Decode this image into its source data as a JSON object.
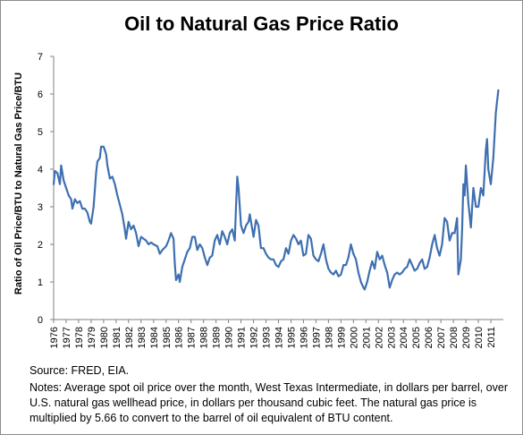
{
  "chart_data": {
    "type": "line",
    "title": "Oil to Natural Gas Price Ratio",
    "xlabel": "",
    "ylabel": "Ratio of Oil Price/BTU to Natural Gas Price/BTU",
    "ylim": [
      0,
      7
    ],
    "yticks": [
      "0",
      "1",
      "2",
      "3",
      "4",
      "5",
      "6",
      "7"
    ],
    "xlim": [
      1976,
      2012
    ],
    "xticks": [
      "1976",
      "1977",
      "1978",
      "1979",
      "1980",
      "1981",
      "1982",
      "1983",
      "1984",
      "1985",
      "1986",
      "1987",
      "1988",
      "1989",
      "1990",
      "1991",
      "1992",
      "1993",
      "1994",
      "1995",
      "1996",
      "1997",
      "1998",
      "1999",
      "2000",
      "2001",
      "2002",
      "2003",
      "2004",
      "2005",
      "2006",
      "2007",
      "2008",
      "2009",
      "2010",
      "2011"
    ],
    "grid": false,
    "legend": "none",
    "series_color": "#3e6fb0",
    "series": [
      {
        "values": [
          [
            1976.0,
            3.6
          ],
          [
            1976.1,
            3.95
          ],
          [
            1976.3,
            3.9
          ],
          [
            1976.5,
            3.6
          ],
          [
            1976.6,
            4.1
          ],
          [
            1976.8,
            3.7
          ],
          [
            1977.0,
            3.5
          ],
          [
            1977.2,
            3.3
          ],
          [
            1977.4,
            3.2
          ],
          [
            1977.5,
            2.95
          ],
          [
            1977.7,
            3.2
          ],
          [
            1977.9,
            3.1
          ],
          [
            1978.1,
            3.15
          ],
          [
            1978.3,
            2.95
          ],
          [
            1978.5,
            2.95
          ],
          [
            1978.7,
            2.85
          ],
          [
            1978.9,
            2.6
          ],
          [
            1979.0,
            2.55
          ],
          [
            1979.2,
            3.0
          ],
          [
            1979.4,
            3.9
          ],
          [
            1979.5,
            4.2
          ],
          [
            1979.7,
            4.3
          ],
          [
            1979.8,
            4.6
          ],
          [
            1980.0,
            4.6
          ],
          [
            1980.2,
            4.4
          ],
          [
            1980.3,
            4.1
          ],
          [
            1980.5,
            3.75
          ],
          [
            1980.7,
            3.8
          ],
          [
            1980.9,
            3.6
          ],
          [
            1981.1,
            3.3
          ],
          [
            1981.3,
            3.05
          ],
          [
            1981.5,
            2.8
          ],
          [
            1981.7,
            2.4
          ],
          [
            1981.8,
            2.15
          ],
          [
            1982.0,
            2.6
          ],
          [
            1982.2,
            2.4
          ],
          [
            1982.4,
            2.5
          ],
          [
            1982.6,
            2.3
          ],
          [
            1982.8,
            1.95
          ],
          [
            1983.0,
            2.2
          ],
          [
            1983.2,
            2.15
          ],
          [
            1983.4,
            2.1
          ],
          [
            1983.6,
            2.0
          ],
          [
            1983.8,
            2.05
          ],
          [
            1984.0,
            2.0
          ],
          [
            1984.3,
            1.95
          ],
          [
            1984.5,
            1.75
          ],
          [
            1984.7,
            1.85
          ],
          [
            1985.0,
            1.95
          ],
          [
            1985.2,
            2.1
          ],
          [
            1985.4,
            2.3
          ],
          [
            1985.6,
            2.15
          ],
          [
            1985.7,
            1.5
          ],
          [
            1985.8,
            1.05
          ],
          [
            1986.0,
            1.2
          ],
          [
            1986.1,
            1.0
          ],
          [
            1986.3,
            1.4
          ],
          [
            1986.5,
            1.6
          ],
          [
            1986.7,
            1.8
          ],
          [
            1986.9,
            1.9
          ],
          [
            1987.1,
            2.2
          ],
          [
            1987.3,
            2.2
          ],
          [
            1987.5,
            1.85
          ],
          [
            1987.7,
            2.0
          ],
          [
            1987.9,
            1.9
          ],
          [
            1988.1,
            1.65
          ],
          [
            1988.3,
            1.45
          ],
          [
            1988.5,
            1.65
          ],
          [
            1988.7,
            1.7
          ],
          [
            1988.9,
            2.1
          ],
          [
            1989.1,
            2.25
          ],
          [
            1989.3,
            2.0
          ],
          [
            1989.5,
            2.35
          ],
          [
            1989.7,
            2.2
          ],
          [
            1989.9,
            2.0
          ],
          [
            1990.1,
            2.3
          ],
          [
            1990.3,
            2.4
          ],
          [
            1990.5,
            2.1
          ],
          [
            1990.6,
            3.0
          ],
          [
            1990.7,
            3.8
          ],
          [
            1990.8,
            3.5
          ],
          [
            1991.0,
            2.5
          ],
          [
            1991.2,
            2.3
          ],
          [
            1991.4,
            2.5
          ],
          [
            1991.6,
            2.6
          ],
          [
            1991.7,
            2.8
          ],
          [
            1991.9,
            2.4
          ],
          [
            1992.0,
            2.2
          ],
          [
            1992.2,
            2.65
          ],
          [
            1992.4,
            2.5
          ],
          [
            1992.6,
            1.9
          ],
          [
            1992.8,
            1.9
          ],
          [
            1993.0,
            1.75
          ],
          [
            1993.2,
            1.65
          ],
          [
            1993.4,
            1.6
          ],
          [
            1993.6,
            1.6
          ],
          [
            1993.8,
            1.45
          ],
          [
            1994.0,
            1.4
          ],
          [
            1994.2,
            1.55
          ],
          [
            1994.4,
            1.6
          ],
          [
            1994.6,
            1.9
          ],
          [
            1994.8,
            1.75
          ],
          [
            1995.0,
            2.1
          ],
          [
            1995.2,
            2.25
          ],
          [
            1995.4,
            2.15
          ],
          [
            1995.6,
            2.0
          ],
          [
            1995.8,
            2.1
          ],
          [
            1996.0,
            1.7
          ],
          [
            1996.2,
            1.75
          ],
          [
            1996.4,
            2.25
          ],
          [
            1996.6,
            2.15
          ],
          [
            1996.8,
            1.7
          ],
          [
            1997.0,
            1.6
          ],
          [
            1997.2,
            1.55
          ],
          [
            1997.4,
            1.75
          ],
          [
            1997.6,
            2.0
          ],
          [
            1997.8,
            1.6
          ],
          [
            1998.0,
            1.35
          ],
          [
            1998.2,
            1.25
          ],
          [
            1998.4,
            1.2
          ],
          [
            1998.6,
            1.3
          ],
          [
            1998.8,
            1.15
          ],
          [
            1999.0,
            1.2
          ],
          [
            1999.2,
            1.45
          ],
          [
            1999.4,
            1.45
          ],
          [
            1999.6,
            1.65
          ],
          [
            1999.8,
            2.0
          ],
          [
            2000.0,
            1.75
          ],
          [
            2000.2,
            1.6
          ],
          [
            2000.4,
            1.25
          ],
          [
            2000.6,
            1.0
          ],
          [
            2000.8,
            0.85
          ],
          [
            2000.9,
            0.8
          ],
          [
            2001.1,
            1.0
          ],
          [
            2001.3,
            1.3
          ],
          [
            2001.5,
            1.55
          ],
          [
            2001.7,
            1.35
          ],
          [
            2001.9,
            1.8
          ],
          [
            2002.1,
            1.6
          ],
          [
            2002.3,
            1.7
          ],
          [
            2002.5,
            1.45
          ],
          [
            2002.7,
            1.25
          ],
          [
            2002.9,
            0.85
          ],
          [
            2003.1,
            1.05
          ],
          [
            2003.3,
            1.2
          ],
          [
            2003.5,
            1.25
          ],
          [
            2003.7,
            1.2
          ],
          [
            2003.9,
            1.25
          ],
          [
            2004.1,
            1.35
          ],
          [
            2004.3,
            1.4
          ],
          [
            2004.5,
            1.6
          ],
          [
            2004.7,
            1.45
          ],
          [
            2004.9,
            1.3
          ],
          [
            2005.1,
            1.35
          ],
          [
            2005.3,
            1.5
          ],
          [
            2005.5,
            1.6
          ],
          [
            2005.7,
            1.35
          ],
          [
            2005.9,
            1.4
          ],
          [
            2006.1,
            1.65
          ],
          [
            2006.3,
            2.0
          ],
          [
            2006.5,
            2.25
          ],
          [
            2006.7,
            1.9
          ],
          [
            2006.9,
            1.7
          ],
          [
            2007.1,
            2.0
          ],
          [
            2007.3,
            2.7
          ],
          [
            2007.5,
            2.6
          ],
          [
            2007.7,
            2.1
          ],
          [
            2007.9,
            2.3
          ],
          [
            2008.1,
            2.3
          ],
          [
            2008.3,
            2.7
          ],
          [
            2008.4,
            1.2
          ],
          [
            2008.6,
            1.6
          ],
          [
            2008.7,
            2.4
          ],
          [
            2008.8,
            3.6
          ],
          [
            2008.9,
            3.3
          ],
          [
            2009.0,
            4.1
          ],
          [
            2009.2,
            3.1
          ],
          [
            2009.4,
            2.45
          ],
          [
            2009.6,
            3.5
          ],
          [
            2009.8,
            3.0
          ],
          [
            2010.0,
            3.0
          ],
          [
            2010.2,
            3.5
          ],
          [
            2010.4,
            3.3
          ],
          [
            2010.6,
            4.5
          ],
          [
            2010.7,
            4.8
          ],
          [
            2010.8,
            4.0
          ],
          [
            2011.0,
            3.6
          ],
          [
            2011.2,
            4.3
          ],
          [
            2011.4,
            5.5
          ],
          [
            2011.6,
            6.1
          ]
        ]
      }
    ]
  },
  "footer": {
    "source": "Source:  FRED, EIA.",
    "notes": "Notes: Average spot oil  price over the month, West Texas Intermediate, in dollars per barrel, over U.S. natural gas wellhead price, in dollars per thousand cubic feet. The natural gas price is multiplied by 5.66 to convert  to the barrel of oil equivalent of BTU content."
  }
}
